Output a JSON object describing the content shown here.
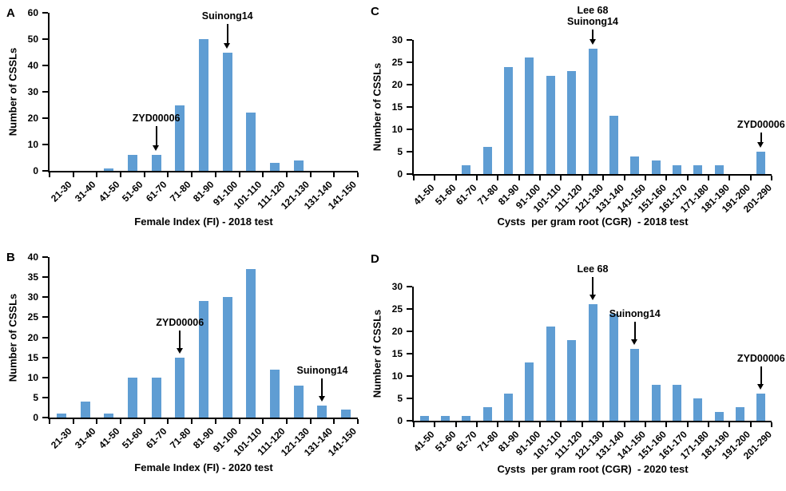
{
  "figure": {
    "bar_color": "#5F9DD3",
    "axis_color": "#000000",
    "text_color": "#000000"
  },
  "chart_data": [
    {
      "type": "bar",
      "panel": "A",
      "xlabel": "Female Index (FI) - 2018 test",
      "ylabel": "Number of CSSLs",
      "ylim": [
        0,
        60
      ],
      "ystep": 10,
      "grid": false,
      "categories": [
        "21-30",
        "31-40",
        "41-50",
        "51-60",
        "61-70",
        "71-80",
        "81-90",
        "91-100",
        "101-110",
        "111-120",
        "121-130",
        "131-140",
        "141-150"
      ],
      "values": [
        0,
        0,
        1,
        6,
        6,
        25,
        50,
        45,
        22,
        3,
        4,
        0,
        0
      ],
      "annotations": [
        {
          "lines": [
            "ZYD00006"
          ],
          "category": "61-70"
        },
        {
          "lines": [
            "Suinong14"
          ],
          "category": "91-100"
        }
      ]
    },
    {
      "type": "bar",
      "panel": "B",
      "xlabel": "Female Index (FI) - 2020 test",
      "ylabel": "Number of CSSLs",
      "ylim": [
        0,
        40
      ],
      "ystep": 5,
      "grid": false,
      "categories": [
        "21-30",
        "31-40",
        "41-50",
        "51-60",
        "61-70",
        "71-80",
        "81-90",
        "91-100",
        "101-110",
        "111-120",
        "121-130",
        "131-140",
        "141-150"
      ],
      "values": [
        1,
        4,
        1,
        10,
        10,
        15,
        29,
        30,
        37,
        12,
        8,
        3,
        2
      ],
      "annotations": [
        {
          "lines": [
            "ZYD00006"
          ],
          "category": "71-80"
        },
        {
          "lines": [
            "Suinong14"
          ],
          "category": "131-140"
        }
      ]
    },
    {
      "type": "bar",
      "panel": "C",
      "xlabel": "Cysts  per gram root (CGR)  - 2018 test",
      "ylabel": "Number of CSSLs",
      "ylim": [
        0,
        30
      ],
      "ystep": 5,
      "grid": false,
      "categories": [
        "41-50",
        "51-60",
        "61-70",
        "71-80",
        "81-90",
        "91-100",
        "101-110",
        "111-120",
        "121-130",
        "131-140",
        "141-150",
        "151-160",
        "161-170",
        "171-180",
        "181-190",
        "191-200",
        "201-290"
      ],
      "values": [
        0,
        0,
        2,
        6,
        24,
        26,
        22,
        23,
        28,
        13,
        4,
        3,
        2,
        2,
        2,
        0,
        5
      ],
      "annotations": [
        {
          "lines": [
            "Lee 68",
            "Suinong14"
          ],
          "category": "121-130"
        },
        {
          "lines": [
            "ZYD00006"
          ],
          "category": "201-290"
        }
      ]
    },
    {
      "type": "bar",
      "panel": "D",
      "xlabel": "Cysts  per gram root (CGR)  - 2020 test",
      "ylabel": "Number of CSSLs",
      "ylim": [
        0,
        30
      ],
      "ystep": 5,
      "grid": false,
      "categories": [
        "41-50",
        "51-60",
        "61-70",
        "71-80",
        "81-90",
        "91-100",
        "101-110",
        "111-120",
        "121-130",
        "131-140",
        "141-150",
        "151-160",
        "161-170",
        "171-180",
        "181-190",
        "191-200",
        "201-290"
      ],
      "values": [
        1,
        1,
        1,
        3,
        6,
        13,
        21,
        18,
        26,
        24,
        16,
        8,
        8,
        5,
        2,
        3,
        6
      ],
      "annotations": [
        {
          "lines": [
            "Lee 68"
          ],
          "category": "121-130"
        },
        {
          "lines": [
            "Suinong14"
          ],
          "category": "141-150"
        },
        {
          "lines": [
            "ZYD00006"
          ],
          "category": "201-290"
        }
      ]
    }
  ]
}
